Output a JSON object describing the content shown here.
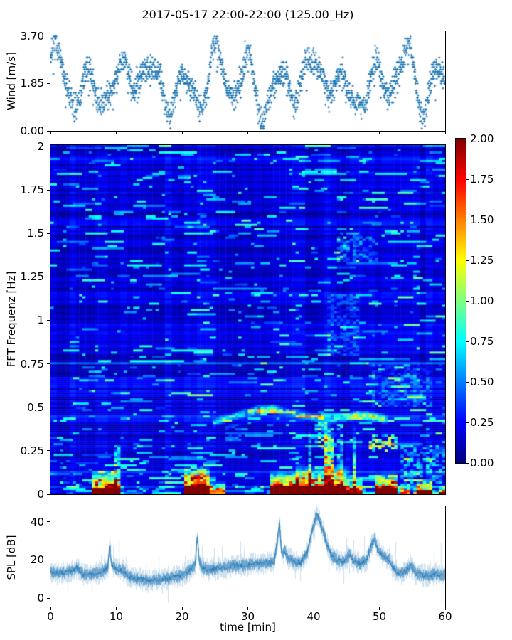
{
  "title": "2017-05-17 22:00-22:00 (125.00_Hz)",
  "colors": {
    "marker": "#1f77b4",
    "spl_line": "#1f77b4",
    "axis": "#000000",
    "figure_bg": "#ffffff"
  },
  "chart_data": [
    {
      "id": "wind",
      "type": "scatter",
      "ylabel": "Wind [m/s]",
      "marker": "plus",
      "marker_color": "#1f77b4",
      "xlim": [
        0,
        60
      ],
      "ylim": [
        0,
        3.893
      ],
      "yticks": [
        {
          "label": "3.70",
          "value": 3.7
        },
        {
          "label": "1.85",
          "value": 1.85
        },
        {
          "label": "0.00",
          "value": 0.0
        }
      ],
      "xticks_unlabeled": [
        0,
        10,
        20,
        30,
        40,
        50,
        60
      ],
      "n_points": 1900,
      "seed": 7,
      "quantize_step": 0.0925,
      "gen": {
        "mean": 1.9,
        "osc": [
          [
            1.05,
            1.3,
            0.3
          ],
          [
            0.45,
            0.47,
            1.7
          ],
          [
            0.25,
            2.3,
            0.9
          ]
        ],
        "mod": [
          0.75,
          0.3,
          0.21,
          2.0
        ],
        "spread": 0.5,
        "min": 0.05,
        "max": 3.66
      }
    },
    {
      "id": "spectrogram",
      "type": "heatmap",
      "ylabel": "FFT Frequenz [Hz]",
      "xlim": [
        0,
        60
      ],
      "ylim": [
        0,
        2.008
      ],
      "clim": [
        0,
        2
      ],
      "colormap": "jet",
      "yticks": [
        {
          "label": "2",
          "value": 2
        },
        {
          "label": "1.75",
          "value": 1.75
        },
        {
          "label": "1.5",
          "value": 1.5
        },
        {
          "label": "1.25",
          "value": 1.25
        },
        {
          "label": "1",
          "value": 1
        },
        {
          "label": "0.75",
          "value": 0.75
        },
        {
          "label": "0.5",
          "value": 0.5
        },
        {
          "label": "0.25",
          "value": 0.25
        },
        {
          "label": "0",
          "value": 0
        }
      ],
      "grid": {
        "cols": 124,
        "rows": 164
      },
      "seed": 13,
      "background": {
        "base": 0.1,
        "row_var": 0.22,
        "col_var": 0.12,
        "dash_prob": 0.13,
        "dash_low_freq_prob": 0.45,
        "dash_strength": [
          0.2,
          0.7
        ],
        "low_half_boost": 0.045
      },
      "features": {
        "bottom_bands": [
          {
            "t": [
              6.3,
              10.5
            ],
            "peak": 2.0,
            "top_hz": 0.04,
            "halo_hz": 0.105
          },
          {
            "t": [
              20.1,
              24.0
            ],
            "peak": 2.0,
            "top_hz": 0.05,
            "halo_hz": 0.11
          },
          {
            "t": [
              24.0,
              26.4
            ],
            "peak": 1.25,
            "top_hz": 0.028,
            "halo_hz": 0.05
          },
          {
            "t": [
              33.6,
              37.5
            ],
            "peak": 2.0,
            "top_hz": 0.052,
            "halo_hz": 0.085
          },
          {
            "t": [
              37.5,
              45.2
            ],
            "peak": 1.9,
            "top_hz": 0.045,
            "halo_hz": 0.13
          },
          {
            "t": [
              45.2,
              47.4
            ],
            "peak": 1.5,
            "top_hz": 0.03,
            "halo_hz": 0.07
          },
          {
            "t": [
              49.2,
              52.8
            ],
            "peak": 1.95,
            "top_hz": 0.035,
            "halo_hz": 0.09
          },
          {
            "t": [
              53.2,
              54.6
            ],
            "peak": 0.9,
            "top_hz": 0.018,
            "halo_hz": 0.04
          },
          {
            "t": [
              55.8,
              58.2
            ],
            "peak": 1.5,
            "top_hz": 0.028,
            "halo_hz": 0.065
          },
          {
            "t": [
              59.0,
              60.0
            ],
            "peak": 1.1,
            "top_hz": 0.018,
            "halo_hz": 0.04
          }
        ],
        "arc": {
          "points": [
            [
              24.5,
              0.4
            ],
            [
              26.5,
              0.435
            ],
            [
              28.5,
              0.455
            ],
            [
              30.5,
              0.475
            ],
            [
              32.5,
              0.49
            ],
            [
              34.5,
              0.485
            ],
            [
              36.5,
              0.47
            ],
            [
              38.5,
              0.455
            ],
            [
              40.5,
              0.44
            ],
            [
              42.5,
              0.43
            ],
            [
              44.5,
              0.44
            ],
            [
              46.5,
              0.455
            ],
            [
              48.5,
              0.45
            ],
            [
              50.5,
              0.435
            ],
            [
              51.5,
              0.42
            ]
          ],
          "width_hz": 0.03,
          "strength": 0.55,
          "bright_strength": 1.0,
          "bright_segments": [
            [
              30,
              34.5
            ],
            [
              46,
              51
            ]
          ]
        },
        "streaks": {
          "t": [
            38.5,
            46.5
          ],
          "max_hz": 0.42,
          "threshold": 0.55,
          "gain": 4.5
        },
        "blobs": [
          {
            "t": [
              9.6,
              10.6
            ],
            "f": [
              0.05,
              0.28
            ],
            "s": 0.5
          },
          {
            "t": [
              21.3,
              23.6
            ],
            "f": [
              0.05,
              0.16
            ],
            "s": 0.45
          },
          {
            "t": [
              40.0,
              44.5
            ],
            "f": [
              0.26,
              0.42
            ],
            "s": 0.5
          },
          {
            "t": [
              48.6,
              52.6
            ],
            "f": [
              0.24,
              0.34
            ],
            "s": 0.8
          },
          {
            "t": [
              53.0,
              60.0
            ],
            "f": [
              0.0,
              0.28
            ],
            "s": 0.35
          },
          {
            "t": [
              42.0,
              47.0
            ],
            "f": [
              0.8,
              1.15
            ],
            "s": 0.22
          },
          {
            "t": [
              43.5,
              50.0
            ],
            "f": [
              1.33,
              1.5
            ],
            "s": 0.28
          },
          {
            "t": [
              49.0,
              58.0
            ],
            "f": [
              0.5,
              0.75
            ],
            "s": 0.2
          },
          {
            "t": [
              26.5,
              29.0
            ],
            "f": [
              0.3,
              0.4
            ],
            "s": 0.3
          }
        ]
      }
    },
    {
      "id": "spl",
      "type": "line",
      "ylabel": "SPL [dB]",
      "xlabel": "time [min]",
      "line_color": "#1f77b4",
      "xlim": [
        0,
        60
      ],
      "ylim": [
        -4.4,
        48.1
      ],
      "yticks": [
        {
          "label": "40",
          "value": 40
        },
        {
          "label": "20",
          "value": 20
        },
        {
          "label": "0",
          "value": 0
        }
      ],
      "xticks": [
        {
          "label": "0",
          "value": 0
        },
        {
          "label": "10",
          "value": 10
        },
        {
          "label": "20",
          "value": 20
        },
        {
          "label": "30",
          "value": 30
        },
        {
          "label": "40",
          "value": 40
        },
        {
          "label": "50",
          "value": 50
        },
        {
          "label": "60",
          "value": 60
        }
      ],
      "seed": 21,
      "noise_band": 4,
      "keypoints": [
        [
          0,
          14
        ],
        [
          1,
          13
        ],
        [
          2,
          13.5
        ],
        [
          3,
          14
        ],
        [
          4,
          16
        ],
        [
          4.5,
          14
        ],
        [
          5,
          12
        ],
        [
          6,
          12.5
        ],
        [
          7,
          13
        ],
        [
          8,
          14
        ],
        [
          8.7,
          16
        ],
        [
          9,
          30
        ],
        [
          9.2,
          18
        ],
        [
          10,
          15
        ],
        [
          11,
          14.5
        ],
        [
          12,
          11
        ],
        [
          13,
          10
        ],
        [
          14,
          9.5
        ],
        [
          15,
          9
        ],
        [
          16,
          9.5
        ],
        [
          17,
          10
        ],
        [
          18,
          10.5
        ],
        [
          19,
          11
        ],
        [
          20,
          12
        ],
        [
          21,
          14
        ],
        [
          22,
          18
        ],
        [
          22.3,
          33
        ],
        [
          22.6,
          19
        ],
        [
          23,
          16
        ],
        [
          24,
          15
        ],
        [
          25,
          15.5
        ],
        [
          26,
          16
        ],
        [
          27,
          16.5
        ],
        [
          28,
          17
        ],
        [
          29,
          17
        ],
        [
          30,
          17.5
        ],
        [
          31,
          18
        ],
        [
          32,
          18
        ],
        [
          33,
          18.5
        ],
        [
          34,
          19
        ],
        [
          34.8,
          39
        ],
        [
          35.1,
          23
        ],
        [
          35.6,
          25
        ],
        [
          36,
          21
        ],
        [
          37,
          19
        ],
        [
          38,
          18.5
        ],
        [
          39,
          24
        ],
        [
          39.8,
          36
        ],
        [
          40.4,
          44
        ],
        [
          40.8,
          41
        ],
        [
          41.5,
          34
        ],
        [
          42,
          28
        ],
        [
          42.6,
          23
        ],
        [
          43.5,
          20
        ],
        [
          44.5,
          19
        ],
        [
          45.5,
          23
        ],
        [
          46,
          19.5
        ],
        [
          47,
          18
        ],
        [
          48,
          20
        ],
        [
          48.8,
          28
        ],
        [
          49.2,
          31
        ],
        [
          49.8,
          25
        ],
        [
          50.5,
          22
        ],
        [
          51.5,
          20
        ],
        [
          52,
          16
        ],
        [
          53,
          13
        ],
        [
          54,
          14
        ],
        [
          54.8,
          17
        ],
        [
          55.5,
          13
        ],
        [
          56.5,
          12
        ],
        [
          57.5,
          12
        ],
        [
          58.5,
          12.5
        ],
        [
          59.5,
          12
        ],
        [
          60,
          12
        ]
      ]
    }
  ],
  "colorbar": {
    "colormap": "jet",
    "clim": [
      0,
      2
    ],
    "ticks": [
      {
        "label": "2.00",
        "value": 2.0
      },
      {
        "label": "1.75",
        "value": 1.75
      },
      {
        "label": "1.50",
        "value": 1.5
      },
      {
        "label": "1.25",
        "value": 1.25
      },
      {
        "label": "1.00",
        "value": 1.0
      },
      {
        "label": "0.75",
        "value": 0.75
      },
      {
        "label": "0.50",
        "value": 0.5
      },
      {
        "label": "0.25",
        "value": 0.25
      },
      {
        "label": "0.00",
        "value": 0.0
      }
    ]
  }
}
